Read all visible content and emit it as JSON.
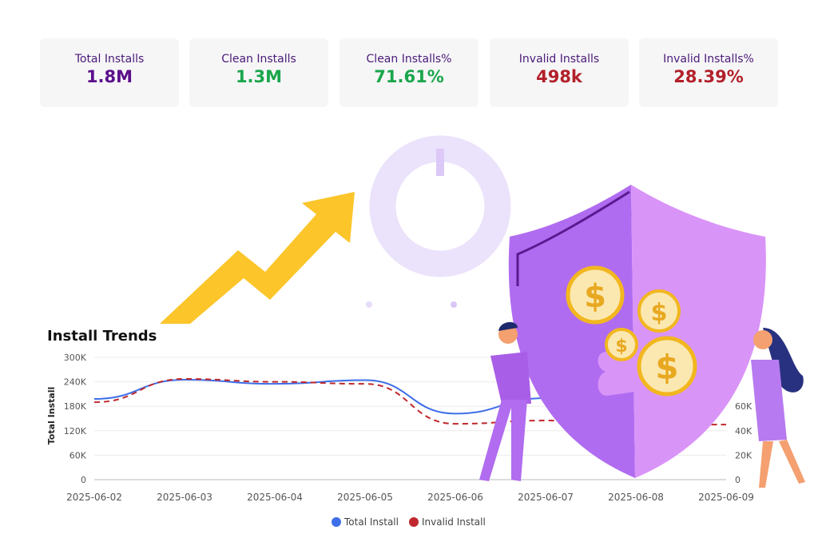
{
  "cards": [
    {
      "label": "Total Installs",
      "value": "1.8M",
      "color": "#5b0f8a"
    },
    {
      "label": "Clean Installs",
      "value": "1.3M",
      "color": "#1aa64b"
    },
    {
      "label": "Clean Installs%",
      "value": "71.61%",
      "color": "#1aa64b"
    },
    {
      "label": "Invalid Installs",
      "value": "498k",
      "color": "#b3202a"
    },
    {
      "label": "Invalid Installs%",
      "value": "28.39%",
      "color": "#b3202a"
    }
  ],
  "chart_data": {
    "type": "line",
    "title": "Install Trends",
    "ylabel": "Total Install",
    "x": [
      "2025-06-02",
      "2025-06-03",
      "2025-06-04",
      "2025-06-05",
      "2025-06-06",
      "2025-06-07",
      "2025-06-08",
      "2025-06-09"
    ],
    "yticks": [
      "0",
      "60K",
      "120K",
      "180K",
      "240K",
      "300K"
    ],
    "ylim": [
      0,
      300000
    ],
    "y2ticks": [
      "0",
      "20K",
      "40K",
      "60K"
    ],
    "grid": true,
    "legend_position": "bottom",
    "series": [
      {
        "name": "Total Install",
        "color": "#3f6fe8",
        "dashed": false,
        "values": [
          198000,
          245000,
          235000,
          244000,
          162000,
          200000,
          null,
          null
        ]
      },
      {
        "name": "Invalid Install",
        "color": "#c0282d",
        "dashed": true,
        "values": [
          190000,
          247000,
          240000,
          235000,
          137000,
          145000,
          null,
          135000
        ]
      }
    ]
  }
}
